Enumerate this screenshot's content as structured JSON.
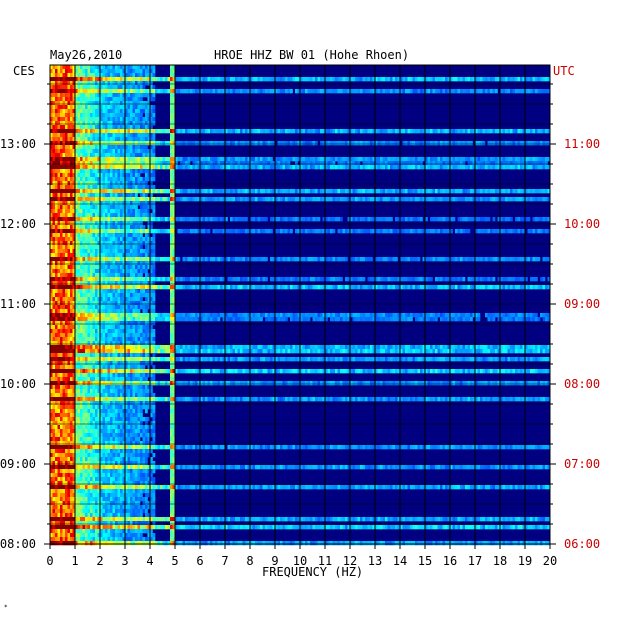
{
  "header": {
    "date": "May26,2010",
    "station": "HROE HHZ BW 01 (Hohe Rhoen)",
    "left_zone": "CES",
    "right_zone": "UTC",
    "footnote": "*"
  },
  "colors": {
    "background": "#000080",
    "grid": "#000000",
    "utc_labels": "#cc0000",
    "local_labels": "#000000"
  },
  "chart_data": {
    "type": "heatmap",
    "title": "HROE HHZ BW 01 (Hohe Rhoen)",
    "xlabel": "FREQUENCY (HZ)",
    "ylabel": "",
    "xlim": [
      0,
      20
    ],
    "x_ticks": [
      "0",
      "1",
      "2",
      "3",
      "4",
      "5",
      "6",
      "7",
      "8",
      "9",
      "10",
      "11",
      "12",
      "13",
      "14",
      "15",
      "16",
      "17",
      "18",
      "19",
      "20"
    ],
    "y_ticks_local": [
      "08:00",
      "09:00",
      "10:00",
      "11:00",
      "12:00",
      "13:00"
    ],
    "y_ticks_utc": [
      "06:00",
      "07:00",
      "08:00",
      "09:00",
      "10:00",
      "11:00"
    ],
    "time_range_utc": [
      "06:00",
      "11:58"
    ],
    "colormap": "jet",
    "features": [
      {
        "description": "strong low-frequency energy",
        "f_min": 0.3,
        "f_max": 1.0,
        "intensity": "high"
      },
      {
        "description": "persistent spectral line",
        "frequency": 4.9,
        "intensity": "medium"
      },
      {
        "description": "broadband noise",
        "f_min": 1.0,
        "f_max": 4.0,
        "intensity": "medium"
      }
    ]
  }
}
